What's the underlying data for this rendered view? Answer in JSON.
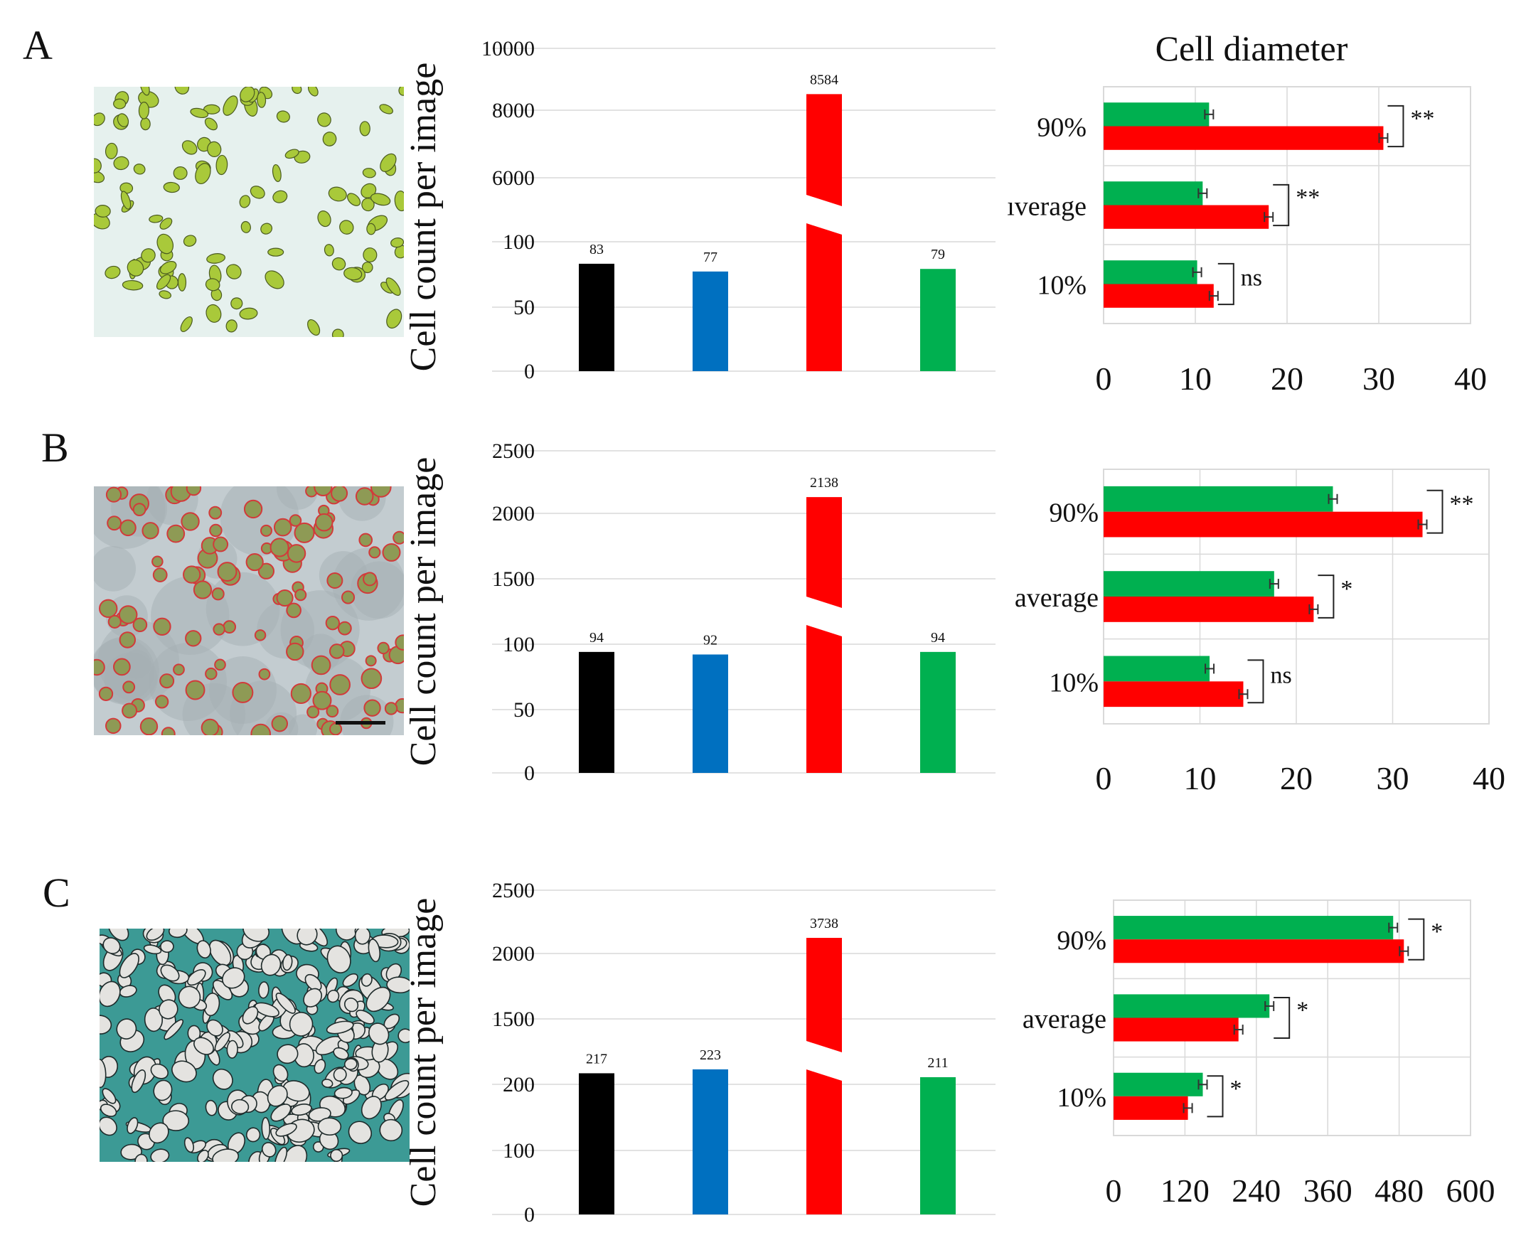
{
  "figure": {
    "panels": [
      {
        "letter": "A",
        "image_desc": "green-cells-micrograph"
      },
      {
        "letter": "B",
        "image_desc": "red-outlined-cells-micrograph"
      },
      {
        "letter": "C",
        "image_desc": "stained-tissue-micrograph"
      }
    ]
  },
  "colors": {
    "black": "#000000",
    "blue": "#0070C0",
    "red": "#FF0000",
    "green": "#00B050",
    "grid": "#D9D9D9",
    "text": "#111111"
  },
  "chart_data": [
    {
      "panel": "A",
      "type": "bar",
      "ylabel": "Cell count per image",
      "y_tick_labels": [
        "0",
        "50",
        "100",
        "6000",
        "8000",
        "10000"
      ],
      "broken_axis": true,
      "categories": [
        "black",
        "blue",
        "red",
        "green"
      ],
      "values": [
        83,
        77,
        8584,
        79
      ],
      "data_labels": [
        "83",
        "77",
        "8584",
        "79"
      ],
      "bar_colors": [
        "#000000",
        "#0070C0",
        "#FF0000",
        "#00B050"
      ]
    },
    {
      "panel": "A",
      "type": "hbar",
      "title": "Cell diameter",
      "categories": [
        "90%",
        "ıverage",
        "10%"
      ],
      "series": [
        {
          "name": "green",
          "color": "#00B050",
          "values": [
            11.5,
            10.8,
            10.2
          ]
        },
        {
          "name": "red",
          "color": "#FF0000",
          "values": [
            30.5,
            18,
            12
          ]
        }
      ],
      "significance": [
        "**",
        "**",
        "ns"
      ],
      "x_tick_labels": [
        "0",
        "10",
        "20",
        "30",
        "40"
      ],
      "xlim": [
        0,
        40
      ]
    },
    {
      "panel": "B",
      "type": "bar",
      "ylabel": "Cell count per image",
      "y_tick_labels": [
        "0",
        "50",
        "100",
        "1500",
        "2000",
        "2500"
      ],
      "broken_axis": true,
      "categories": [
        "black",
        "blue",
        "red",
        "green"
      ],
      "values": [
        94,
        92,
        2138,
        94
      ],
      "data_labels": [
        "94",
        "92",
        "2138",
        "94"
      ],
      "bar_colors": [
        "#000000",
        "#0070C0",
        "#FF0000",
        "#00B050"
      ]
    },
    {
      "panel": "B",
      "type": "hbar",
      "title": "",
      "categories": [
        "90%",
        "average",
        "10%"
      ],
      "series": [
        {
          "name": "green",
          "color": "#00B050",
          "values": [
            23.8,
            17.7,
            11
          ]
        },
        {
          "name": "red",
          "color": "#FF0000",
          "values": [
            33.1,
            21.8,
            14.5
          ]
        }
      ],
      "significance": [
        "**",
        "*",
        "ns"
      ],
      "x_tick_labels": [
        "0",
        "10",
        "20",
        "30",
        "40"
      ],
      "xlim": [
        0,
        40
      ]
    },
    {
      "panel": "C",
      "type": "bar",
      "ylabel": "Cell count per image",
      "y_tick_labels": [
        "0",
        "100",
        "200",
        "1500",
        "2000",
        "2500"
      ],
      "broken_axis": true,
      "categories": [
        "black",
        "blue",
        "red",
        "green"
      ],
      "values": [
        217,
        223,
        3738,
        211
      ],
      "data_labels": [
        "217",
        "223",
        "3738",
        "211"
      ],
      "bar_colors": [
        "#000000",
        "#0070C0",
        "#FF0000",
        "#00B050"
      ]
    },
    {
      "panel": "C",
      "type": "hbar",
      "title": "",
      "categories": [
        "90%",
        "average",
        "10%"
      ],
      "series": [
        {
          "name": "green",
          "color": "#00B050",
          "values": [
            470,
            262,
            150
          ]
        },
        {
          "name": "red",
          "color": "#FF0000",
          "values": [
            488,
            210,
            125
          ]
        }
      ],
      "significance": [
        "*",
        "*",
        "*"
      ],
      "x_tick_labels": [
        "0",
        "120",
        "240",
        "360",
        "480",
        "600"
      ],
      "xlim": [
        0,
        600
      ]
    }
  ]
}
